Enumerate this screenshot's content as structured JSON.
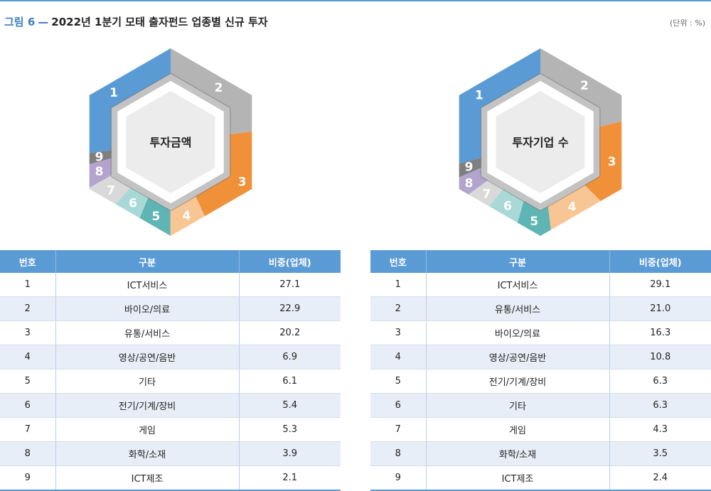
{
  "figure": {
    "label": "그림 6",
    "separator": "—",
    "title": "2022년 1분기 모태 출자펀드 업종별 신규 투자",
    "unit": "(단위 : %)"
  },
  "chart_data": [
    {
      "type": "pie",
      "center_label": "투자금액",
      "labels": [
        "1",
        "2",
        "3",
        "4",
        "5",
        "6",
        "7",
        "8",
        "9"
      ],
      "categories": [
        "ICT서비스",
        "바이오/의료",
        "유통/서비스",
        "영상/공연/음반",
        "기타",
        "전기/기계/장비",
        "게임",
        "화학/소재",
        "ICT제조"
      ],
      "values": [
        27.1,
        22.9,
        20.2,
        6.9,
        6.1,
        5.4,
        5.3,
        3.9,
        2.1
      ],
      "colors": [
        "#5b9bd5",
        "#b4b4b4",
        "#f0913a",
        "#f8c594",
        "#5fb4b4",
        "#a9d9d6",
        "#d9d9d9",
        "#b2a4cc",
        "#7f7f7f"
      ],
      "table": {
        "headers": [
          "번호",
          "구분",
          "비중(업체)"
        ],
        "rows": [
          [
            "1",
            "ICT서비스",
            "27.1"
          ],
          [
            "2",
            "바이오/의료",
            "22.9"
          ],
          [
            "3",
            "유통/서비스",
            "20.2"
          ],
          [
            "4",
            "영상/공연/음반",
            "6.9"
          ],
          [
            "5",
            "기타",
            "6.1"
          ],
          [
            "6",
            "전기/기계/장비",
            "5.4"
          ],
          [
            "7",
            "게임",
            "5.3"
          ],
          [
            "8",
            "화학/소재",
            "3.9"
          ],
          [
            "9",
            "ICT제조",
            "2.1"
          ]
        ]
      }
    },
    {
      "type": "pie",
      "center_label": "투자기업 수",
      "labels": [
        "1",
        "2",
        "3",
        "4",
        "5",
        "6",
        "7",
        "8",
        "9"
      ],
      "categories": [
        "ICT서비스",
        "유통/서비스",
        "바이오/의료",
        "영상/공연/음반",
        "전기/기계/장비",
        "기타",
        "게임",
        "화학/소재",
        "ICT제조"
      ],
      "values": [
        29.1,
        21.0,
        16.3,
        10.8,
        6.3,
        6.3,
        4.3,
        3.5,
        2.4
      ],
      "colors": [
        "#5b9bd5",
        "#b4b4b4",
        "#f0913a",
        "#f8c594",
        "#5fb4b4",
        "#a9d9d6",
        "#d9d9d9",
        "#b2a4cc",
        "#7f7f7f"
      ],
      "table": {
        "headers": [
          "번호",
          "구분",
          "비중(업체)"
        ],
        "rows": [
          [
            "1",
            "ICT서비스",
            "29.1"
          ],
          [
            "2",
            "유통/서비스",
            "21.0"
          ],
          [
            "3",
            "바이오/의료",
            "16.3"
          ],
          [
            "4",
            "영상/공연/음반",
            "10.8"
          ],
          [
            "5",
            "전기/기계/장비",
            "6.3"
          ],
          [
            "6",
            "기타",
            "6.3"
          ],
          [
            "7",
            "게임",
            "4.3"
          ],
          [
            "8",
            "화학/소재",
            "3.5"
          ],
          [
            "9",
            "ICT제조",
            "2.4"
          ]
        ]
      }
    }
  ]
}
